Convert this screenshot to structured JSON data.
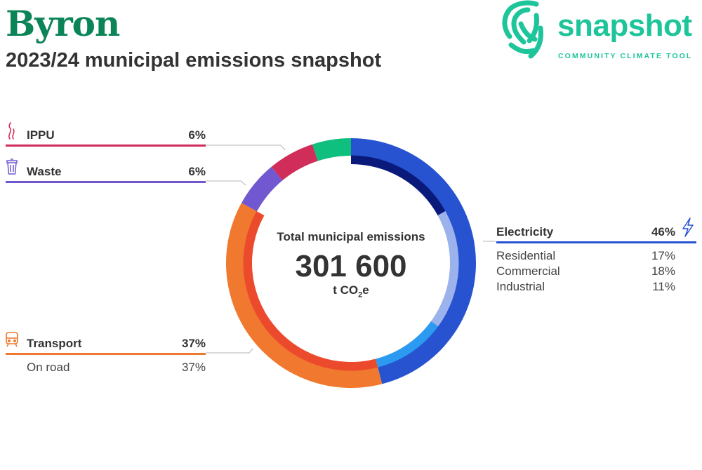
{
  "header": {
    "title": "Byron",
    "subtitle": "2023/24 municipal emissions snapshot"
  },
  "logo": {
    "word": "snapshot",
    "tagline": "COMMUNITY CLIMATE TOOL",
    "icon": "fingerprint-swirl-icon",
    "color": "#1fc59a"
  },
  "chart_data": {
    "type": "pie",
    "style": "donut",
    "center_label": "Total municipal emissions",
    "total": "301 600",
    "unit_prefix": "t CO",
    "unit_sub": "2",
    "unit_suffix": "e",
    "categories": [
      {
        "key": "electricity",
        "name": "Electricity",
        "pct_label": "46%",
        "value": 46,
        "color": "#2753d0",
        "icon": "lightning-icon",
        "subs": [
          {
            "name": "Residential",
            "pct_label": "17%",
            "value": 17,
            "color": "#0a1a7a"
          },
          {
            "name": "Commercial",
            "pct_label": "18%",
            "value": 18,
            "color": "#9cb2ec"
          },
          {
            "name": "Industrial",
            "pct_label": "11%",
            "value": 11,
            "color": "#2b9af0"
          }
        ]
      },
      {
        "key": "transport",
        "name": "Transport",
        "pct_label": "37%",
        "value": 37,
        "color": "#f0782f",
        "icon": "train-icon",
        "subs": [
          {
            "name": "On road",
            "pct_label": "37%",
            "value": 37,
            "color": "#ec4a2d"
          }
        ]
      },
      {
        "key": "waste",
        "name": "Waste",
        "pct_label": "6%",
        "value": 6,
        "color": "#7158d0",
        "icon": "trash-icon",
        "subs": []
      },
      {
        "key": "ippu",
        "name": "IPPU",
        "pct_label": "6%",
        "value": 6,
        "color": "#d12d5a",
        "icon": "smoke-icon",
        "subs": []
      },
      {
        "key": "other",
        "name": "",
        "pct_label": "",
        "value": 5,
        "color": "#0fbf7e",
        "icon": "",
        "subs": []
      }
    ]
  }
}
